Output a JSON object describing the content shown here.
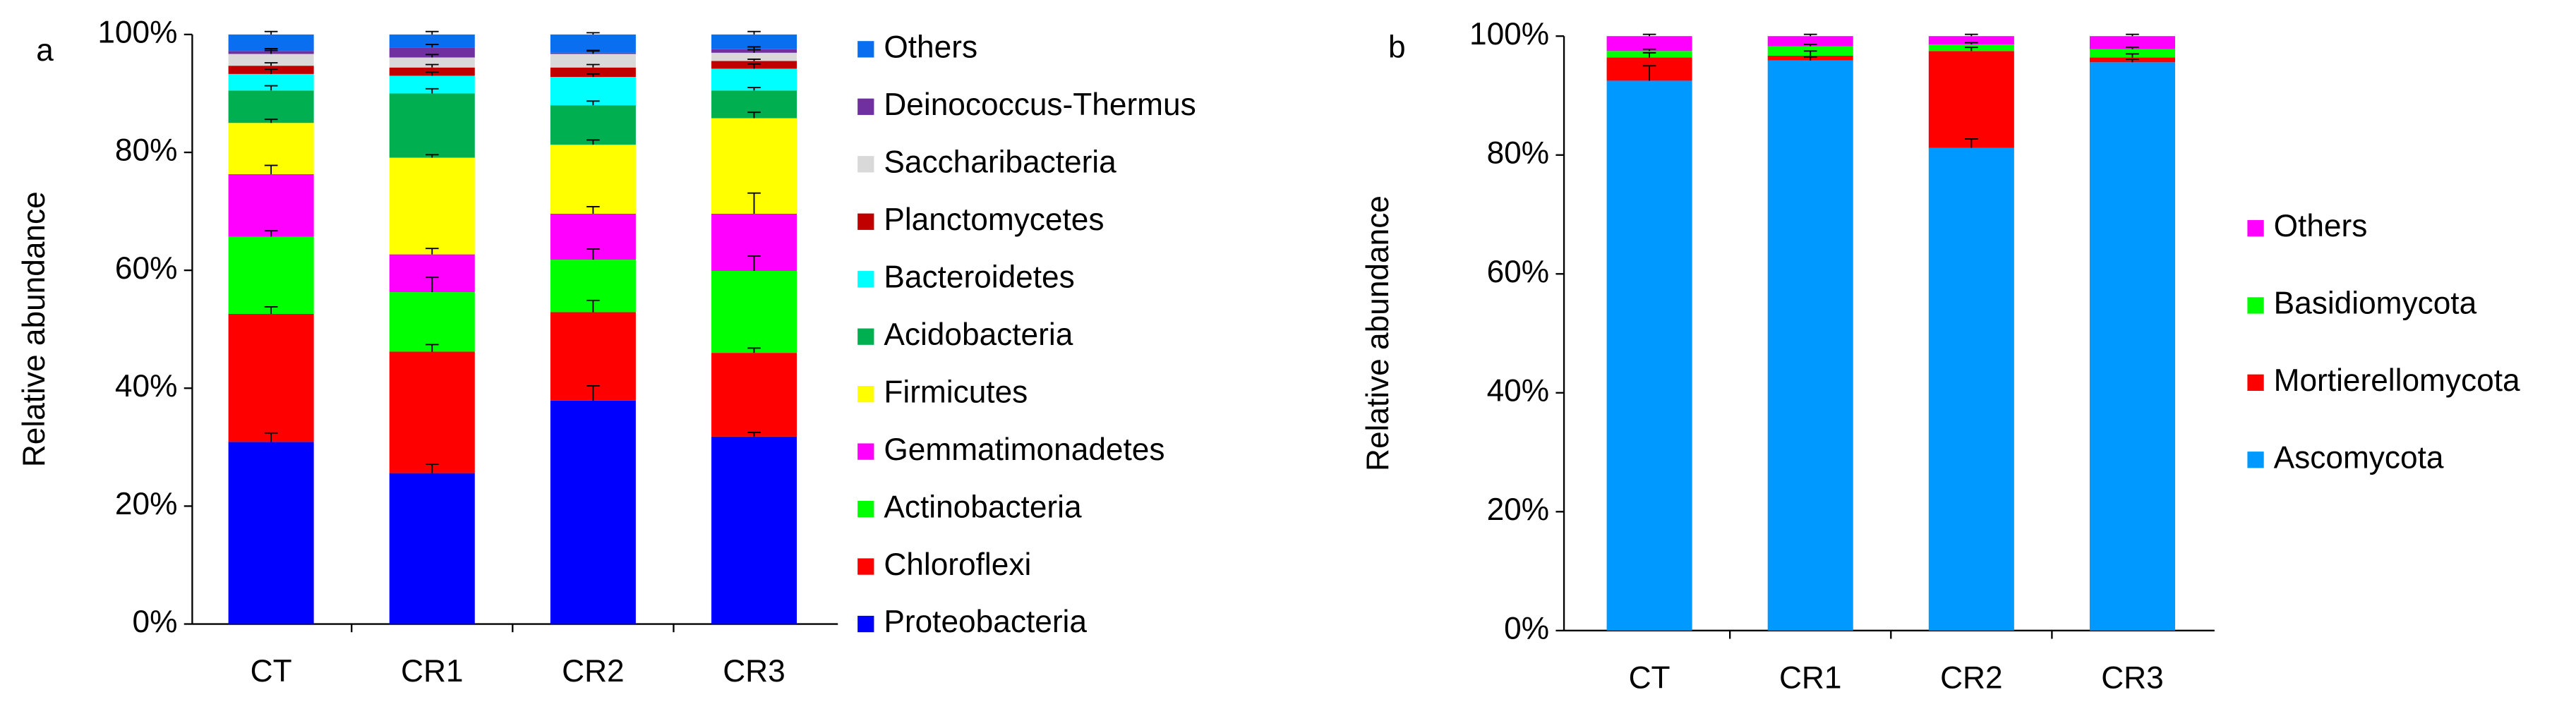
{
  "chart_data": [
    {
      "type": "stacked_bar",
      "panel_label": "a",
      "y_label": "Relative abundance",
      "categories": [
        "CT",
        "CR1",
        "CR2",
        "CR3"
      ],
      "ylim": [
        0,
        100
      ],
      "yticks": [
        {
          "value": 0,
          "label": "0%"
        },
        {
          "value": 20,
          "label": "20%"
        },
        {
          "value": 40,
          "label": "40%"
        },
        {
          "value": 60,
          "label": "60%"
        },
        {
          "value": 80,
          "label": "80%"
        },
        {
          "value": 100,
          "label": "100%"
        }
      ],
      "series": [
        {
          "name": "Proteobacteria",
          "color": "#0000ff",
          "values": [
            30.9,
            25.6,
            37.9,
            31.8
          ],
          "errors": [
            1.5,
            1.5,
            2.5,
            0.7
          ]
        },
        {
          "name": "Chloroflexi",
          "color": "#ff0000",
          "values": [
            21.7,
            20.6,
            15.0,
            14.2
          ],
          "errors": [
            1.2,
            1.2,
            2.0,
            0.8
          ]
        },
        {
          "name": "Actinobacteria",
          "color": "#00ff00",
          "values": [
            13.1,
            10.1,
            8.9,
            13.9
          ],
          "errors": [
            1.0,
            2.5,
            1.8,
            2.5
          ]
        },
        {
          "name": "Gemmatimonadetes",
          "color": "#ff00ff",
          "values": [
            10.6,
            6.4,
            7.8,
            9.7
          ],
          "errors": [
            1.5,
            1.0,
            1.2,
            3.5
          ]
        },
        {
          "name": "Firmicutes",
          "color": "#ffff00",
          "values": [
            8.7,
            16.4,
            11.7,
            16.2
          ],
          "errors": [
            0.6,
            0.5,
            0.8,
            1.0
          ]
        },
        {
          "name": "Acidobacteria",
          "color": "#00b050",
          "values": [
            5.5,
            10.9,
            6.7,
            4.7
          ],
          "errors": [
            0.8,
            0.8,
            0.7,
            0.5
          ]
        },
        {
          "name": "Bacteroidetes",
          "color": "#00ffff",
          "values": [
            2.8,
            3.0,
            4.8,
            3.7
          ],
          "errors": [
            0.8,
            0.6,
            0.5,
            0.8
          ]
        },
        {
          "name": "Planctomycetes",
          "color": "#c00000",
          "values": [
            1.4,
            1.4,
            1.6,
            1.3
          ],
          "errors": [
            0.5,
            0.5,
            0.5,
            0.3
          ]
        },
        {
          "name": "Saccharibacteria",
          "color": "#d9d9d9",
          "values": [
            2.0,
            1.7,
            2.3,
            1.4
          ],
          "errors": [
            0.6,
            0.5,
            0.5,
            0.5
          ]
        },
        {
          "name": "Deinococcus-Thermus",
          "color": "#7030a0",
          "values": [
            0.5,
            1.7,
            0.2,
            0.6
          ],
          "errors": [
            0.4,
            0.5,
            0.4,
            0.4
          ]
        },
        {
          "name": "Others",
          "color": "#0a6ef0",
          "values": [
            2.8,
            2.2,
            3.1,
            2.5
          ],
          "errors": [
            0.5,
            0.5,
            0.3,
            0.5
          ]
        }
      ]
    },
    {
      "type": "stacked_bar",
      "panel_label": "b",
      "y_label": "Relative abundance",
      "categories": [
        "CT",
        "CR1",
        "CR2",
        "CR3"
      ],
      "ylim": [
        0,
        100
      ],
      "yticks": [
        {
          "value": 0,
          "label": "0%"
        },
        {
          "value": 20,
          "label": "20%"
        },
        {
          "value": 40,
          "label": "40%"
        },
        {
          "value": 60,
          "label": "60%"
        },
        {
          "value": 80,
          "label": "80%"
        },
        {
          "value": 100,
          "label": "100%"
        }
      ],
      "series": [
        {
          "name": "Ascomycota",
          "color": "#0099ff",
          "values": [
            92.5,
            95.9,
            81.2,
            95.6
          ],
          "errors": [
            2.5,
            0.6,
            1.5,
            0.5
          ]
        },
        {
          "name": "Mortierellomycota",
          "color": "#ff0000",
          "values": [
            3.9,
            0.8,
            16.3,
            0.8
          ],
          "errors": [
            0.8,
            0.8,
            0.6,
            0.6
          ]
        },
        {
          "name": "Basidiomycota",
          "color": "#00ff00",
          "values": [
            1.1,
            1.6,
            1.1,
            1.4
          ],
          "errors": [
            0.3,
            0.3,
            0.3,
            0.3
          ]
        },
        {
          "name": "Others",
          "color": "#ff00ff",
          "values": [
            2.5,
            1.7,
            1.4,
            2.2
          ],
          "errors": [
            0.3,
            0.3,
            0.3,
            0.3
          ]
        }
      ]
    }
  ]
}
